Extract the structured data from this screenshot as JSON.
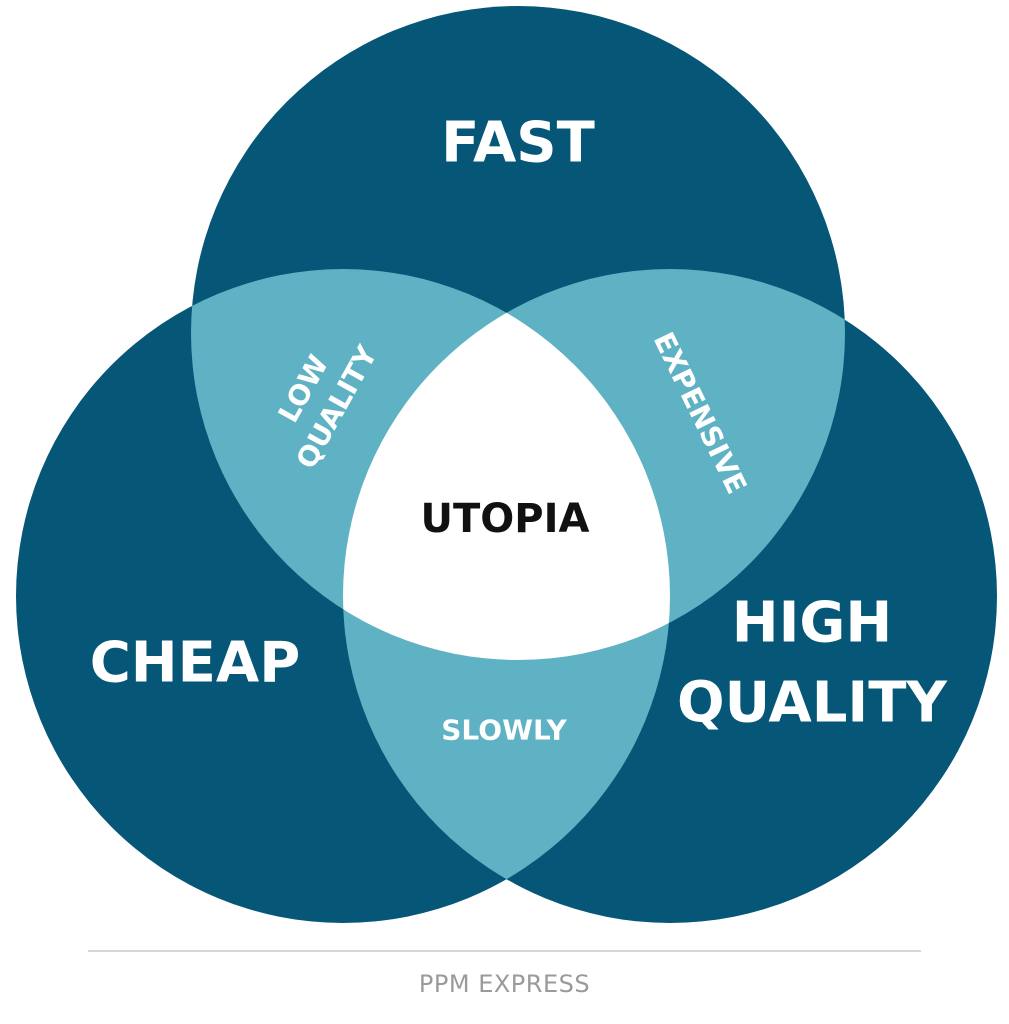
{
  "diagram": {
    "circles": {
      "fast": "FAST",
      "cheap": "CHEAP",
      "high_quality_line1": "HIGH",
      "high_quality_line2": "QUALITY"
    },
    "overlaps": {
      "fast_cheap_line1": "LOW",
      "fast_cheap_line2": "QUALITY",
      "fast_high_quality": "EXPENSIVE",
      "cheap_high_quality": "SLOWLY"
    },
    "center": "UTOPIA"
  },
  "footer": {
    "brand": "PPM EXPRESS"
  },
  "colors": {
    "circle": "#065677",
    "overlap": "#5FB2C3",
    "center": "#ffffff",
    "text_light": "#ffffff",
    "text_dark": "#111111"
  }
}
